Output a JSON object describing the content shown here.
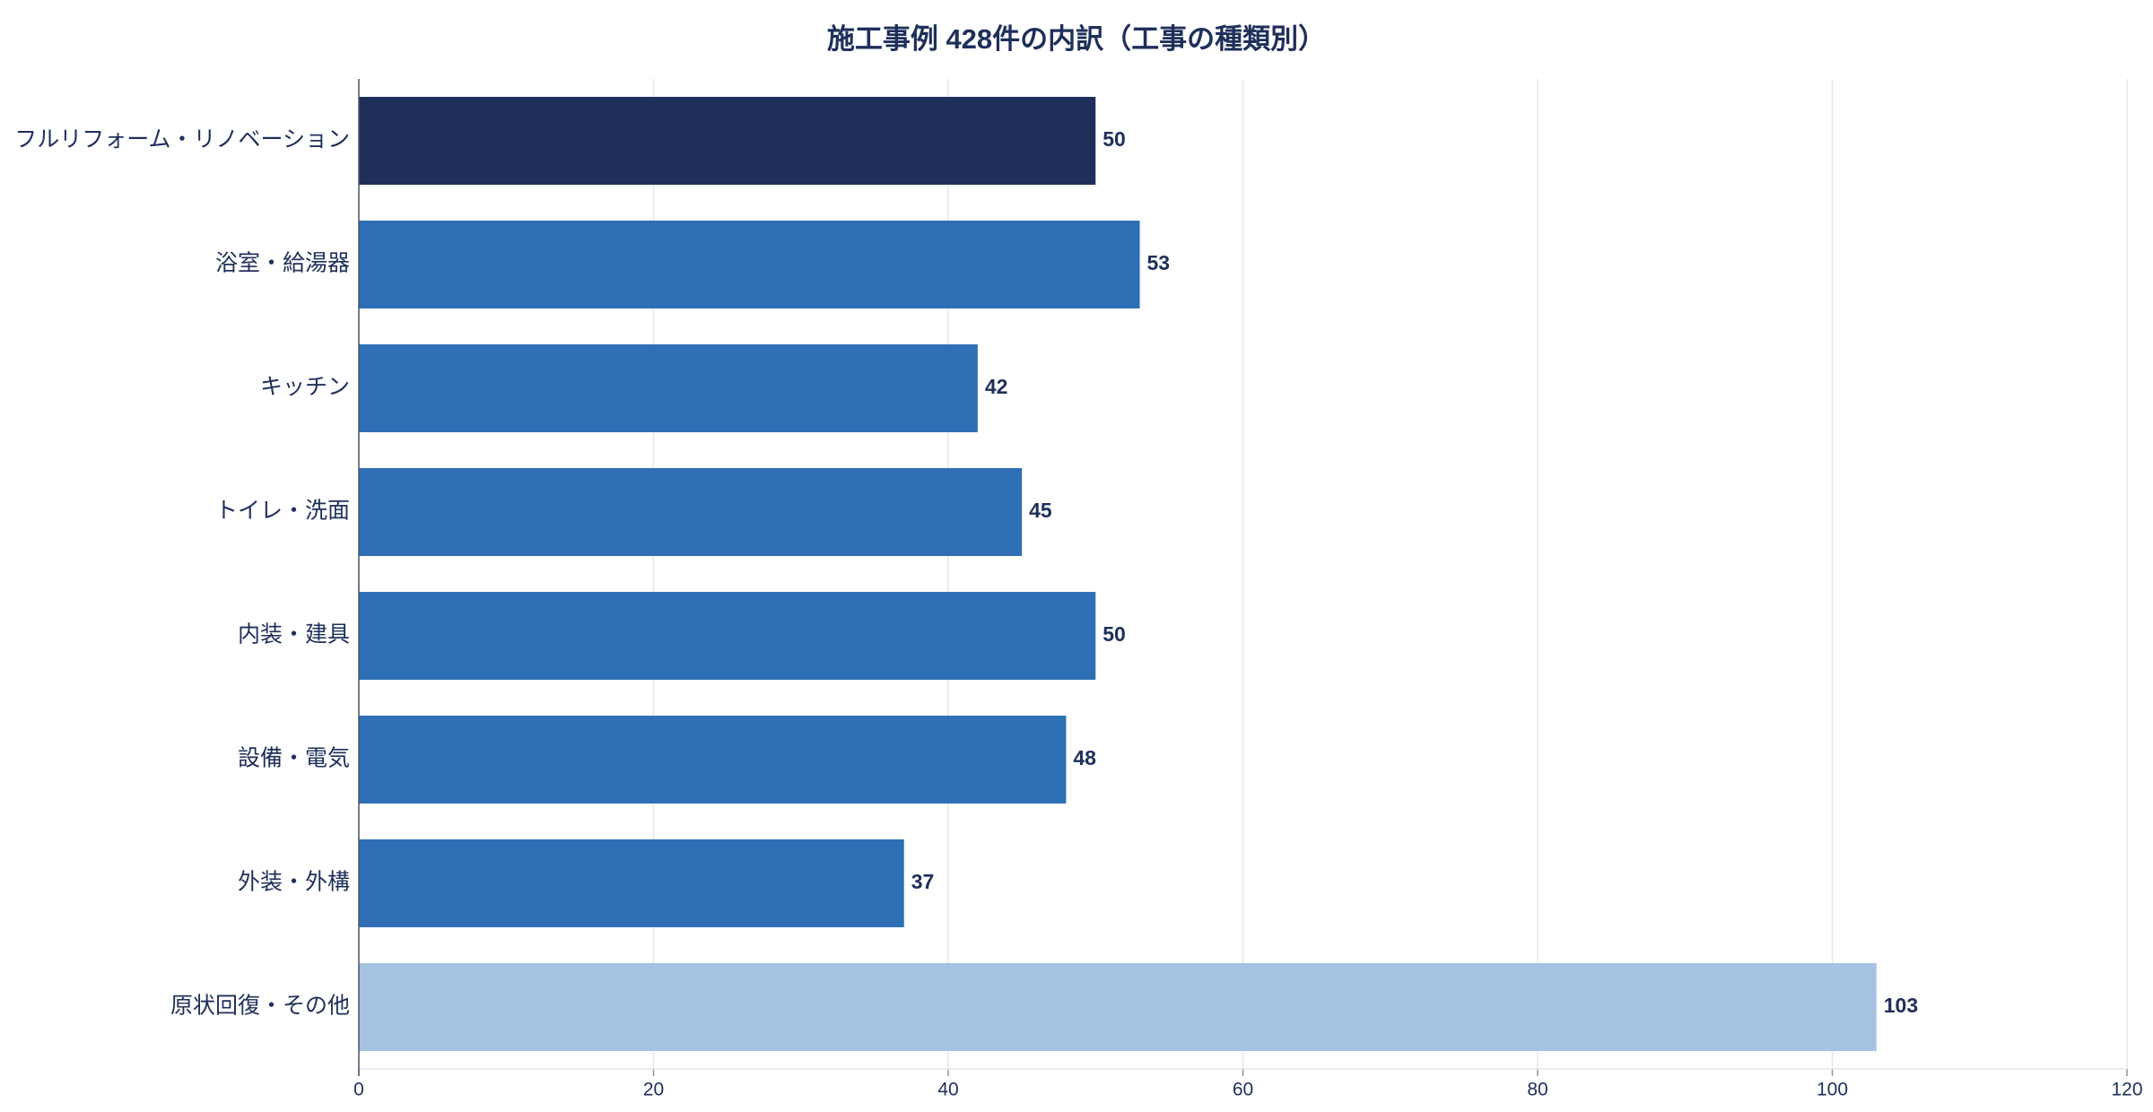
{
  "chart_data": {
    "type": "barh",
    "title": "施工事例 428件の内訳（工事の種類別）",
    "categories": [
      "フルリフォーム・リノベーション",
      "浴室・給湯器",
      "キッチン",
      "トイレ・洗面",
      "内装・建具",
      "設備・電気",
      "外装・外構",
      "原状回復・その他"
    ],
    "values": [
      50,
      53,
      42,
      45,
      50,
      48,
      37,
      103
    ],
    "colors": [
      "#1e2f5a",
      "#2e6fb5",
      "#2e6fb5",
      "#2e6fb5",
      "#2e6fb5",
      "#2e6fb5",
      "#2e6fb5",
      "#a7c3e3"
    ],
    "xlim": [
      0,
      120
    ],
    "xticks": [
      0,
      20,
      40,
      60,
      80,
      100,
      120
    ],
    "grid": true
  }
}
